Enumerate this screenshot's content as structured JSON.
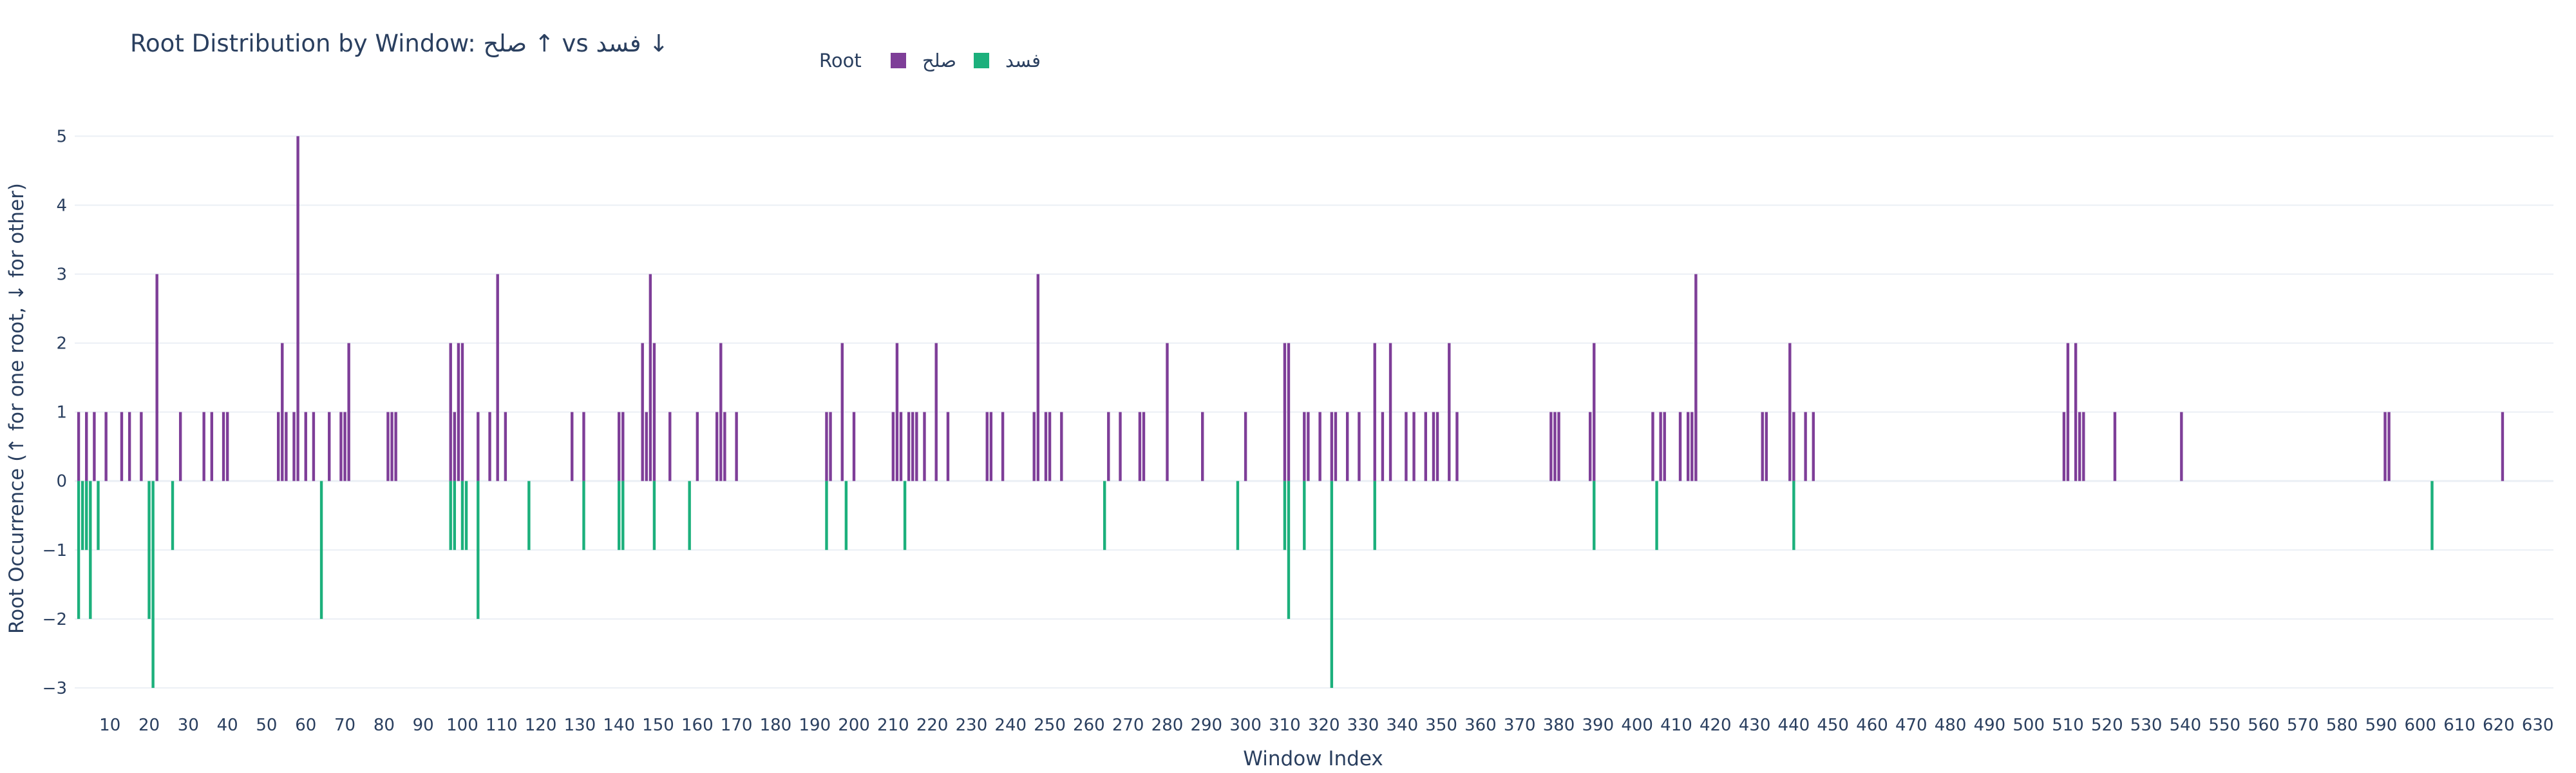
{
  "chart_data": {
    "type": "bar",
    "title": "Root Distribution by Window: صلح ↑ vs فسد ↓",
    "xlabel": "Window Index",
    "ylabel": "Root Occurrence (↑ for one root, ↓ for other)",
    "legend": {
      "title": "Root",
      "placement": "top-center",
      "orientation": "horizontal"
    },
    "xlim": [
      1,
      634
    ],
    "ylim": [
      -3.3,
      5.2
    ],
    "grid": true,
    "x_ticks": [
      10,
      20,
      30,
      40,
      50,
      60,
      70,
      80,
      90,
      100,
      110,
      120,
      130,
      140,
      150,
      160,
      170,
      180,
      190,
      200,
      210,
      220,
      230,
      240,
      250,
      260,
      270,
      280,
      290,
      300,
      310,
      320,
      330,
      340,
      350,
      360,
      370,
      380,
      390,
      400,
      410,
      420,
      430,
      440,
      450,
      460,
      470,
      480,
      490,
      500,
      510,
      520,
      530,
      540,
      550,
      560,
      570,
      580,
      590,
      600,
      610,
      620,
      630
    ],
    "y_ticks": [
      -3,
      -2,
      -1,
      0,
      1,
      2,
      3,
      4,
      5
    ],
    "series": [
      {
        "name": "صلح",
        "color": "#7e3e98",
        "points": [
          [
            2,
            1
          ],
          [
            4,
            1
          ],
          [
            6,
            1
          ],
          [
            9,
            1
          ],
          [
            13,
            1
          ],
          [
            15,
            1
          ],
          [
            18,
            1
          ],
          [
            22,
            3
          ],
          [
            28,
            1
          ],
          [
            34,
            1
          ],
          [
            36,
            1
          ],
          [
            39,
            1
          ],
          [
            40,
            1
          ],
          [
            53,
            1
          ],
          [
            54,
            2
          ],
          [
            55,
            1
          ],
          [
            57,
            1
          ],
          [
            58,
            5
          ],
          [
            60,
            1
          ],
          [
            62,
            1
          ],
          [
            66,
            1
          ],
          [
            69,
            1
          ],
          [
            70,
            1
          ],
          [
            71,
            2
          ],
          [
            81,
            1
          ],
          [
            82,
            1
          ],
          [
            83,
            1
          ],
          [
            97,
            2
          ],
          [
            98,
            1
          ],
          [
            99,
            2
          ],
          [
            100,
            2
          ],
          [
            104,
            1
          ],
          [
            107,
            1
          ],
          [
            109,
            3
          ],
          [
            111,
            1
          ],
          [
            128,
            1
          ],
          [
            131,
            1
          ],
          [
            140,
            1
          ],
          [
            141,
            1
          ],
          [
            146,
            2
          ],
          [
            147,
            1
          ],
          [
            148,
            3
          ],
          [
            149,
            2
          ],
          [
            153,
            1
          ],
          [
            160,
            1
          ],
          [
            165,
            1
          ],
          [
            166,
            2
          ],
          [
            167,
            1
          ],
          [
            170,
            1
          ],
          [
            193,
            1
          ],
          [
            194,
            1
          ],
          [
            197,
            2
          ],
          [
            200,
            1
          ],
          [
            210,
            1
          ],
          [
            211,
            2
          ],
          [
            212,
            1
          ],
          [
            214,
            1
          ],
          [
            215,
            1
          ],
          [
            216,
            1
          ],
          [
            218,
            1
          ],
          [
            221,
            2
          ],
          [
            224,
            1
          ],
          [
            234,
            1
          ],
          [
            235,
            1
          ],
          [
            238,
            1
          ],
          [
            246,
            1
          ],
          [
            247,
            3
          ],
          [
            249,
            1
          ],
          [
            250,
            1
          ],
          [
            253,
            1
          ],
          [
            265,
            1
          ],
          [
            268,
            1
          ],
          [
            273,
            1
          ],
          [
            274,
            1
          ],
          [
            280,
            2
          ],
          [
            289,
            1
          ],
          [
            300,
            1
          ],
          [
            310,
            2
          ],
          [
            311,
            2
          ],
          [
            315,
            1
          ],
          [
            316,
            1
          ],
          [
            319,
            1
          ],
          [
            322,
            1
          ],
          [
            323,
            1
          ],
          [
            326,
            1
          ],
          [
            329,
            1
          ],
          [
            333,
            2
          ],
          [
            335,
            1
          ],
          [
            337,
            2
          ],
          [
            341,
            1
          ],
          [
            343,
            1
          ],
          [
            346,
            1
          ],
          [
            348,
            1
          ],
          [
            349,
            1
          ],
          [
            352,
            2
          ],
          [
            354,
            1
          ],
          [
            378,
            1
          ],
          [
            379,
            1
          ],
          [
            380,
            1
          ],
          [
            388,
            1
          ],
          [
            389,
            2
          ],
          [
            404,
            1
          ],
          [
            406,
            1
          ],
          [
            407,
            1
          ],
          [
            411,
            1
          ],
          [
            413,
            1
          ],
          [
            414,
            1
          ],
          [
            415,
            3
          ],
          [
            432,
            1
          ],
          [
            433,
            1
          ],
          [
            439,
            2
          ],
          [
            440,
            1
          ],
          [
            443,
            1
          ],
          [
            445,
            1
          ],
          [
            509,
            1
          ],
          [
            510,
            2
          ],
          [
            512,
            2
          ],
          [
            513,
            1
          ],
          [
            514,
            1
          ],
          [
            522,
            1
          ],
          [
            539,
            1
          ],
          [
            591,
            1
          ],
          [
            592,
            1
          ],
          [
            621,
            1
          ]
        ]
      },
      {
        "name": "فسد",
        "color": "#1cb07c",
        "points": [
          [
            2,
            -2
          ],
          [
            3,
            -1
          ],
          [
            4,
            -1
          ],
          [
            5,
            -2
          ],
          [
            7,
            -1
          ],
          [
            20,
            -2
          ],
          [
            21,
            -3
          ],
          [
            26,
            -1
          ],
          [
            64,
            -2
          ],
          [
            97,
            -1
          ],
          [
            98,
            -1
          ],
          [
            100,
            -1
          ],
          [
            101,
            -1
          ],
          [
            104,
            -2
          ],
          [
            117,
            -1
          ],
          [
            131,
            -1
          ],
          [
            140,
            -1
          ],
          [
            141,
            -1
          ],
          [
            149,
            -1
          ],
          [
            158,
            -1
          ],
          [
            193,
            -1
          ],
          [
            198,
            -1
          ],
          [
            213,
            -1
          ],
          [
            264,
            -1
          ],
          [
            298,
            -1
          ],
          [
            310,
            -1
          ],
          [
            311,
            -2
          ],
          [
            315,
            -1
          ],
          [
            322,
            -3
          ],
          [
            333,
            -1
          ],
          [
            389,
            -1
          ],
          [
            405,
            -1
          ],
          [
            440,
            -1
          ],
          [
            603,
            -1
          ]
        ]
      }
    ]
  }
}
